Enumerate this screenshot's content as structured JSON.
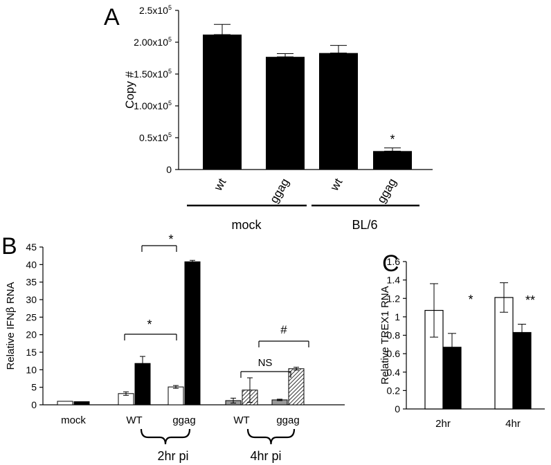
{
  "chart_data": [
    {
      "panel": "A",
      "type": "bar",
      "ylabel": "Copy #",
      "yticks": [
        "0",
        "0.5x10",
        "1.00x10",
        "1.50x10",
        "2.00x10",
        "2.5x10"
      ],
      "ytick_exponent": "5",
      "ylim": [
        0,
        250000
      ],
      "categories": [
        "wt",
        "ggag",
        "wt",
        "ggag"
      ],
      "values": [
        212000,
        177000,
        183000,
        29000
      ],
      "errors": [
        16000,
        5000,
        12000,
        5000
      ],
      "groups": [
        "mock",
        "BL/6"
      ],
      "annotations": [
        "*"
      ],
      "color": "#000000"
    },
    {
      "panel": "B",
      "type": "bar",
      "ylabel_prefix": "Relative IFN",
      "ylabel_greek": "β",
      "ylabel_suffix": " RNA",
      "yticks": [
        "0",
        "5",
        "10",
        "15",
        "20",
        "25",
        "30",
        "35",
        "40",
        "45"
      ],
      "ylim": [
        0,
        45
      ],
      "categories": [
        "mock",
        "WT",
        "ggag",
        "WT",
        "ggag"
      ],
      "pairs": [
        {
          "values": [
            1.0,
            0.9
          ],
          "errors": [
            0,
            0
          ],
          "style": [
            "white",
            "black"
          ]
        },
        {
          "values": [
            3.2,
            11.8
          ],
          "errors": [
            0.5,
            2.0
          ],
          "style": [
            "white",
            "black"
          ]
        },
        {
          "values": [
            5.1,
            40.8
          ],
          "errors": [
            0.4,
            0.4
          ],
          "style": [
            "white",
            "black"
          ]
        },
        {
          "values": [
            1.2,
            4.2
          ],
          "errors": [
            0.7,
            3.5
          ],
          "style": [
            "grey",
            "hatch"
          ]
        },
        {
          "values": [
            1.4,
            10.3
          ],
          "errors": [
            0.2,
            0.4
          ],
          "style": [
            "grey",
            "hatch"
          ]
        }
      ],
      "groups": [
        "2hr pi",
        "4hr pi"
      ],
      "annotations": [
        "*",
        "*",
        "NS",
        "#"
      ]
    },
    {
      "panel": "C",
      "type": "bar",
      "ylabel": "Relative TREX1 RNA",
      "yticks": [
        "0",
        "0.2",
        "0.4",
        "0.6",
        "0.8",
        "1",
        "1.2",
        "1.4",
        "1.6"
      ],
      "ylim": [
        0,
        1.6
      ],
      "categories": [
        "2hr",
        "4hr"
      ],
      "pairs": [
        {
          "values": [
            1.07,
            0.67
          ],
          "errors": [
            0.29,
            0.15
          ],
          "style": [
            "white",
            "black"
          ]
        },
        {
          "values": [
            1.21,
            0.83
          ],
          "errors": [
            0.16,
            0.09
          ],
          "style": [
            "white",
            "black"
          ]
        }
      ],
      "annotations": [
        "*",
        "**"
      ]
    }
  ]
}
